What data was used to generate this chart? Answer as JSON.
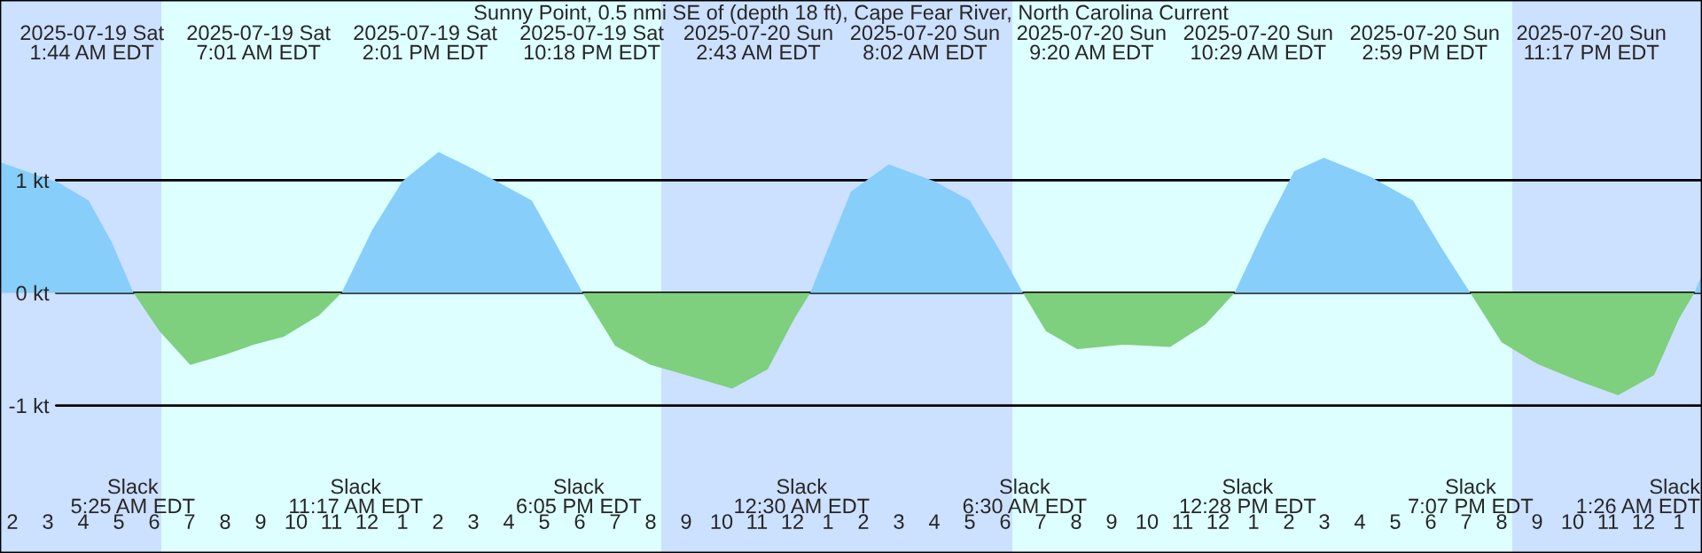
{
  "chart_data": {
    "type": "area",
    "title": "Sunny Point, 0.5 nmi SE of (depth 18 ft), Cape Fear River, North Carolina Current",
    "x": [
      "2025-07-19T01:39",
      "2025-07-19T03:18",
      "2025-07-19T04:09",
      "2025-07-19T04:48",
      "2025-07-19T05:25",
      "2025-07-19T06:09",
      "2025-07-19T07:01",
      "2025-07-19T08:00",
      "2025-07-19T08:48",
      "2025-07-19T09:39",
      "2025-07-19T10:39",
      "2025-07-19T11:17",
      "2025-07-19T12:09",
      "2025-07-19T13:00",
      "2025-07-19T14:01",
      "2025-07-19T14:48",
      "2025-07-19T15:39",
      "2025-07-19T16:39",
      "2025-07-19T17:18",
      "2025-07-19T18:05",
      "2025-07-19T19:00",
      "2025-07-19T20:00",
      "2025-07-19T21:00",
      "2025-07-19T22:18",
      "2025-07-19T23:18",
      "2025-07-20T00:03",
      "2025-07-20T00:30",
      "2025-07-20T01:39",
      "2025-07-20T02:43",
      "2025-07-20T04:00",
      "2025-07-20T05:00",
      "2025-07-20T05:48",
      "2025-07-20T06:30",
      "2025-07-20T07:09",
      "2025-07-20T08:02",
      "2025-07-20T09:18",
      "2025-07-20T10:39",
      "2025-07-20T11:39",
      "2025-07-20T12:28",
      "2025-07-20T13:18",
      "2025-07-20T14:09",
      "2025-07-20T14:59",
      "2025-07-20T16:18",
      "2025-07-20T17:30",
      "2025-07-20T18:18",
      "2025-07-20T19:07",
      "2025-07-20T20:00",
      "2025-07-20T21:00",
      "2025-07-20T22:09",
      "2025-07-20T23:17",
      "2025-07-21T00:18",
      "2025-07-21T01:00",
      "2025-07-21T01:26",
      "2025-07-21T01:39"
    ],
    "series": [
      {
        "color": "#87cefa",
        "values": [
          1.16,
          0.98,
          0.82,
          0.45,
          0,
          null,
          null,
          null,
          null,
          null,
          null,
          0,
          0.56,
          0.99,
          1.25,
          1.13,
          0.99,
          0.82,
          0.45,
          0,
          null,
          null,
          null,
          null,
          null,
          null,
          0,
          0.9,
          1.14,
          0.99,
          0.82,
          0.4,
          0,
          null,
          null,
          null,
          null,
          null,
          0,
          0.56,
          1.08,
          1.2,
          1.03,
          0.82,
          0.4,
          0,
          null,
          null,
          null,
          null,
          null,
          null,
          0,
          0.16
        ]
      },
      {
        "color": "#7ecf7e",
        "values": [
          null,
          null,
          null,
          null,
          0,
          -0.34,
          -0.64,
          -0.55,
          -0.46,
          -0.39,
          -0.2,
          0,
          null,
          null,
          null,
          null,
          null,
          null,
          null,
          0,
          -0.47,
          -0.64,
          -0.73,
          -0.85,
          -0.68,
          -0.23,
          0,
          null,
          null,
          null,
          null,
          null,
          0,
          -0.34,
          -0.5,
          -0.46,
          -0.48,
          -0.28,
          0,
          null,
          null,
          null,
          null,
          null,
          null,
          0,
          -0.44,
          -0.63,
          -0.78,
          -0.91,
          -0.73,
          -0.23,
          0,
          null
        ]
      }
    ],
    "xlim": [
      "2025-07-19T01:39",
      "2025-07-21T01:39"
    ],
    "ylim": [
      -2.31,
      2.6
    ],
    "yticks": [
      {
        "value": 1,
        "label": "1 kt"
      },
      {
        "value": 0,
        "label": "0 kt"
      },
      {
        "value": -1,
        "label": "-1 kt"
      }
    ],
    "xticks": [
      {
        "value": "2025-07-19T02:00",
        "label": "2"
      },
      {
        "value": "2025-07-19T03:00",
        "label": "3"
      },
      {
        "value": "2025-07-19T04:00",
        "label": "4"
      },
      {
        "value": "2025-07-19T05:00",
        "label": "5"
      },
      {
        "value": "2025-07-19T06:00",
        "label": "6"
      },
      {
        "value": "2025-07-19T07:00",
        "label": "7"
      },
      {
        "value": "2025-07-19T08:00",
        "label": "8"
      },
      {
        "value": "2025-07-19T09:00",
        "label": "9"
      },
      {
        "value": "2025-07-19T10:00",
        "label": "10"
      },
      {
        "value": "2025-07-19T11:00",
        "label": "11"
      },
      {
        "value": "2025-07-19T12:00",
        "label": "12"
      },
      {
        "value": "2025-07-19T13:00",
        "label": "1"
      },
      {
        "value": "2025-07-19T14:00",
        "label": "2"
      },
      {
        "value": "2025-07-19T15:00",
        "label": "3"
      },
      {
        "value": "2025-07-19T16:00",
        "label": "4"
      },
      {
        "value": "2025-07-19T17:00",
        "label": "5"
      },
      {
        "value": "2025-07-19T18:00",
        "label": "6"
      },
      {
        "value": "2025-07-19T19:00",
        "label": "7"
      },
      {
        "value": "2025-07-19T20:00",
        "label": "8"
      },
      {
        "value": "2025-07-19T21:00",
        "label": "9"
      },
      {
        "value": "2025-07-19T22:00",
        "label": "10"
      },
      {
        "value": "2025-07-19T23:00",
        "label": "11"
      },
      {
        "value": "2025-07-20T00:00",
        "label": "12"
      },
      {
        "value": "2025-07-20T01:00",
        "label": "1"
      },
      {
        "value": "2025-07-20T02:00",
        "label": "2"
      },
      {
        "value": "2025-07-20T03:00",
        "label": "3"
      },
      {
        "value": "2025-07-20T04:00",
        "label": "4"
      },
      {
        "value": "2025-07-20T05:00",
        "label": "5"
      },
      {
        "value": "2025-07-20T06:00",
        "label": "6"
      },
      {
        "value": "2025-07-20T07:00",
        "label": "7"
      },
      {
        "value": "2025-07-20T08:00",
        "label": "8"
      },
      {
        "value": "2025-07-20T09:00",
        "label": "9"
      },
      {
        "value": "2025-07-20T10:00",
        "label": "10"
      },
      {
        "value": "2025-07-20T11:00",
        "label": "11"
      },
      {
        "value": "2025-07-20T12:00",
        "label": "12"
      },
      {
        "value": "2025-07-20T13:00",
        "label": "1"
      },
      {
        "value": "2025-07-20T14:00",
        "label": "2"
      },
      {
        "value": "2025-07-20T15:00",
        "label": "3"
      },
      {
        "value": "2025-07-20T16:00",
        "label": "4"
      },
      {
        "value": "2025-07-20T17:00",
        "label": "5"
      },
      {
        "value": "2025-07-20T18:00",
        "label": "6"
      },
      {
        "value": "2025-07-20T19:00",
        "label": "7"
      },
      {
        "value": "2025-07-20T20:00",
        "label": "8"
      },
      {
        "value": "2025-07-20T21:00",
        "label": "9"
      },
      {
        "value": "2025-07-20T22:00",
        "label": "10"
      },
      {
        "value": "2025-07-20T23:00",
        "label": "11"
      },
      {
        "value": "2025-07-21T00:00",
        "label": "12"
      },
      {
        "value": "2025-07-21T01:00",
        "label": "1"
      }
    ],
    "grid": "y",
    "bands": [
      {
        "axis": "x",
        "from": "2025-07-19T01:39",
        "to": "2025-07-19T06:12",
        "color": "#cce0ff"
      },
      {
        "axis": "x",
        "from": "2025-07-19T06:12",
        "to": "2025-07-19T20:18",
        "color": "#ddffff"
      },
      {
        "axis": "x",
        "from": "2025-07-19T20:18",
        "to": "2025-07-20T06:12",
        "color": "#cce0ff"
      },
      {
        "axis": "x",
        "from": "2025-07-20T06:12",
        "to": "2025-07-20T20:18",
        "color": "#ddffff"
      },
      {
        "axis": "x",
        "from": "2025-07-20T20:18",
        "to": "2025-07-21T01:39",
        "color": "#cce0ff"
      }
    ],
    "annotations": [
      "2025-07-19 Sat\n1:44 AM EDT",
      "2025-07-19 Sat\n7:01 AM EDT",
      "2025-07-19 Sat\n2:01 PM EDT",
      "2025-07-19 Sat\n10:18 PM EDT",
      "2025-07-20 Sun\n2:43 AM EDT",
      "2025-07-20 Sun\n8:02 AM EDT",
      "2025-07-20 Sun\n9:20 AM EDT",
      "2025-07-20 Sun\n10:29 AM EDT",
      "2025-07-20 Sun\n2:59 PM EDT",
      "2025-07-20 Sun\n11:17 PM EDT",
      "Slack\n5:25 AM EDT",
      "Slack\n11:17 AM EDT",
      "Slack\n6:05 PM EDT",
      "Slack\n12:30 AM EDT",
      "Slack\n6:30 AM EDT",
      "Slack\n12:28 PM EDT",
      "Slack\n7:07 PM EDT",
      "Slack\n1:26 AM EDT"
    ]
  }
}
